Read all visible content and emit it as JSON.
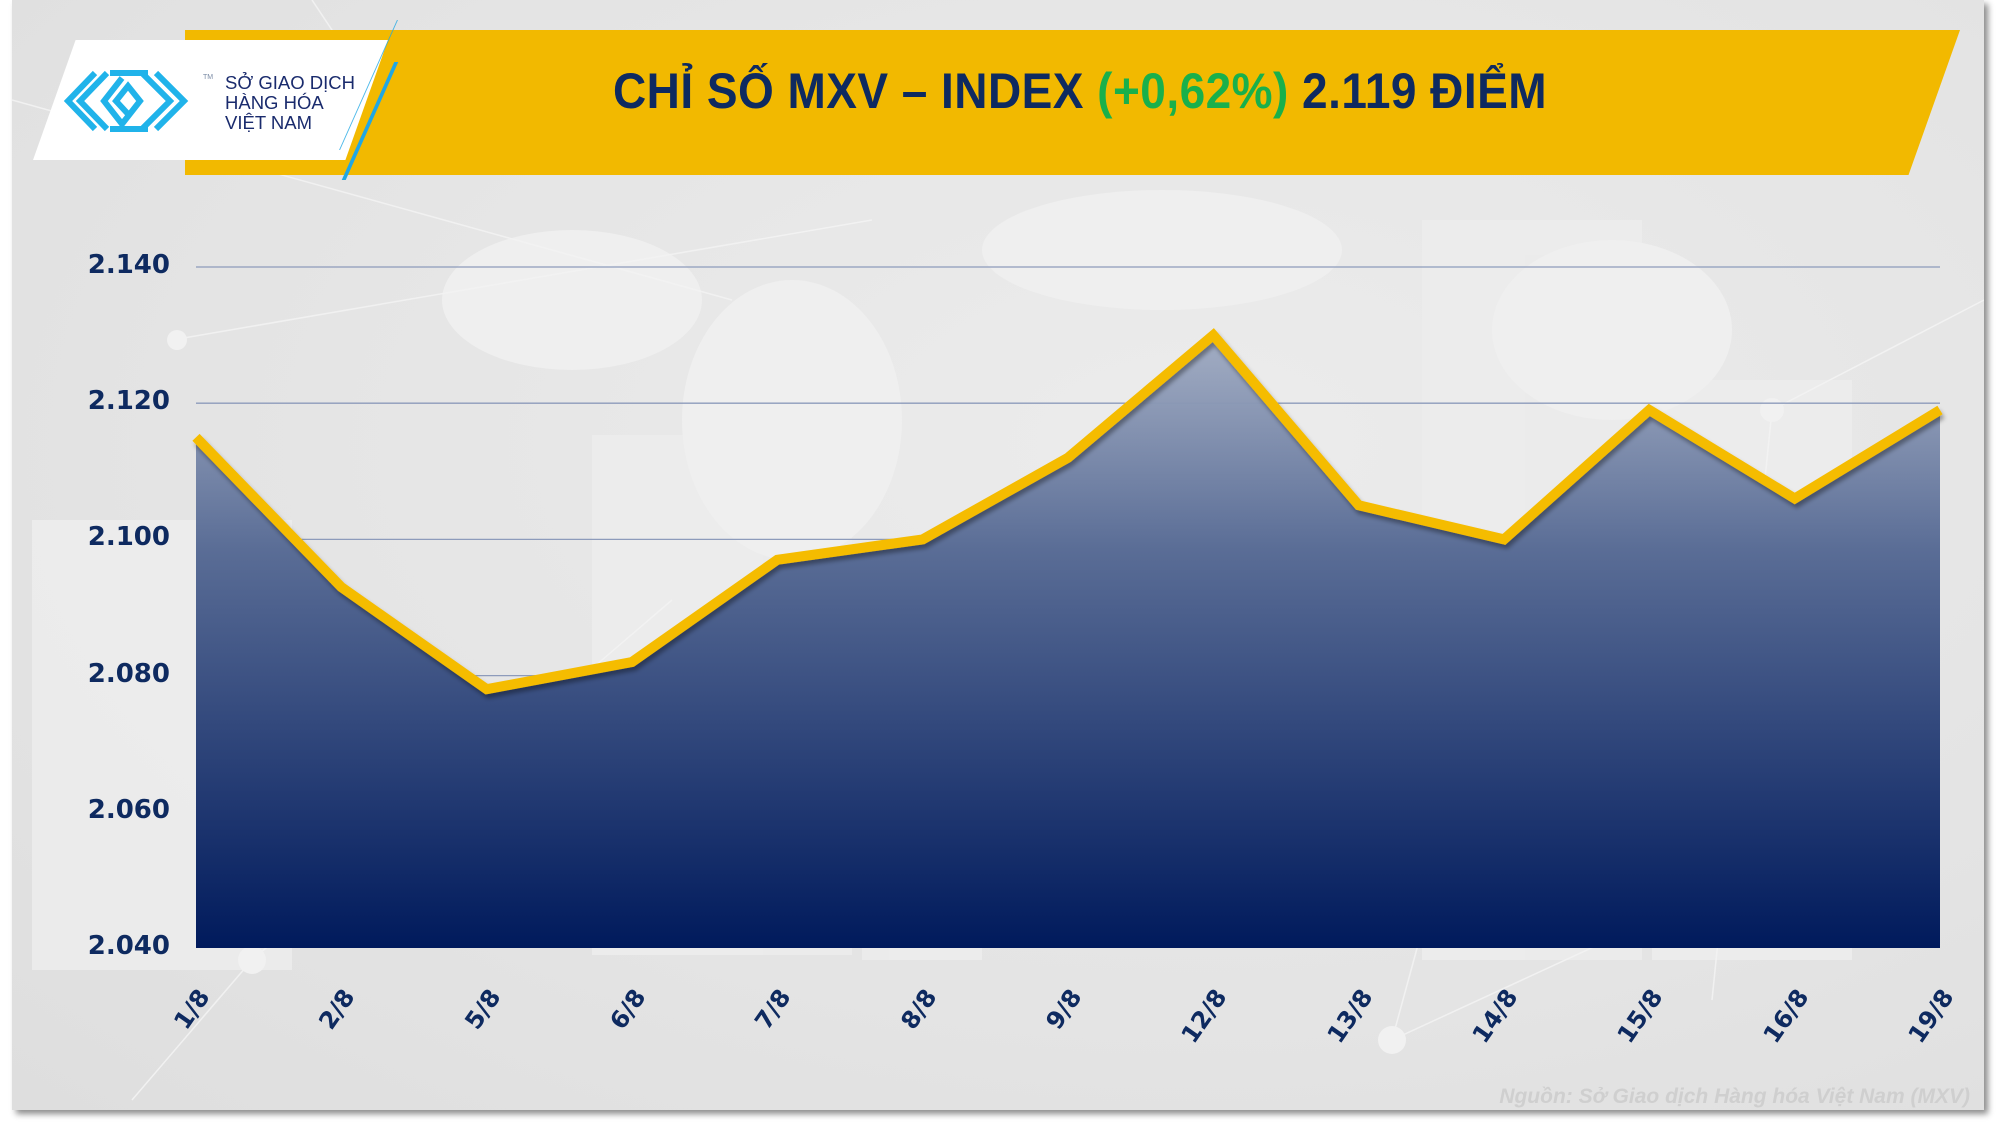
{
  "header": {
    "logo": {
      "line1": "SỞ GIAO DỊCH",
      "line2": "HÀNG HÓA",
      "line3": "VIỆT NAM",
      "tm": "TM"
    },
    "title_prefix": "CHỈ SỐ MXV – INDEX ",
    "title_change": "(+0,62%)",
    "title_suffix": " 2.119 ĐIỂM",
    "colors": {
      "banner": "#f2b900",
      "title_text": "#0e2a60",
      "change_positive": "#19b04b",
      "logo_blue": "#20a7e4"
    }
  },
  "footer": {
    "source": "Nguồn: Sở Giao dịch Hàng hóa Việt Nam (MXV)"
  },
  "chart_data": {
    "type": "area",
    "title": "CHỈ SỐ MXV – INDEX (+0,62%) 2.119 ĐIỂM",
    "xlabel": "",
    "ylabel": "",
    "categories": [
      "1/8",
      "2/8",
      "5/8",
      "6/8",
      "7/8",
      "8/8",
      "9/8",
      "12/8",
      "13/8",
      "14/8",
      "15/8",
      "16/8",
      "19/8"
    ],
    "series": [
      {
        "name": "MXV-Index",
        "values": [
          2115,
          2093,
          2078,
          2082,
          2097,
          2100,
          2112,
          2130,
          2105,
          2100,
          2119,
          2106,
          2119
        ],
        "line_color": "#f5bc00",
        "fill_gradient": [
          "#8a98b4",
          "#001a5c"
        ]
      }
    ],
    "yticks": [
      "2.040",
      "2.060",
      "2.080",
      "2.100",
      "2.120",
      "2.140"
    ],
    "ytick_values": [
      2040,
      2060,
      2080,
      2100,
      2120,
      2140
    ],
    "ylim": [
      2040,
      2140
    ],
    "grid": true,
    "legend": "none"
  }
}
